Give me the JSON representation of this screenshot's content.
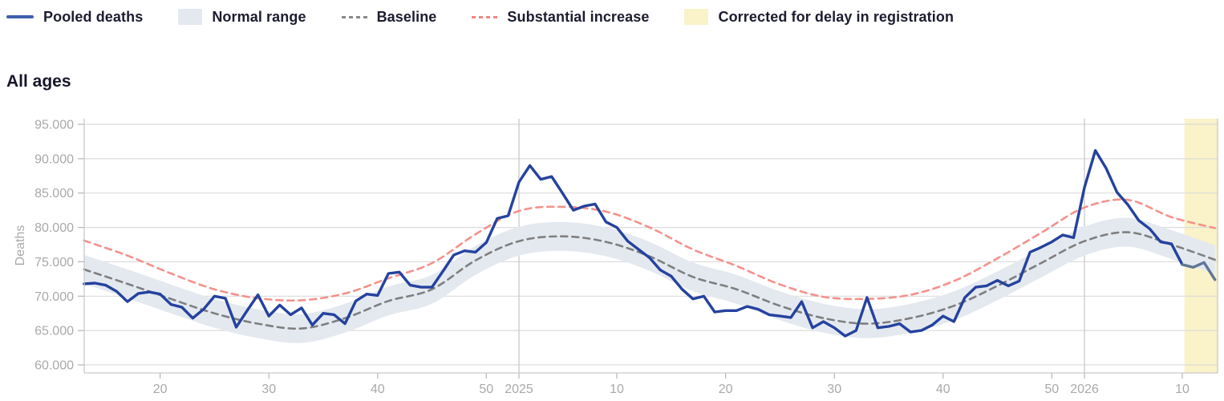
{
  "legend": {
    "items": [
      {
        "label": "Pooled deaths",
        "swatch": "line",
        "color": "#3f5fae"
      },
      {
        "label": "Normal range",
        "swatch": "box",
        "color": "#e4e9f0"
      },
      {
        "label": "Baseline",
        "swatch": "dashes",
        "color": "#8a8a8a"
      },
      {
        "label": "Substantial increase",
        "swatch": "dashes",
        "color": "#f4867f"
      },
      {
        "label": "Corrected for delay in registration",
        "swatch": "box",
        "color": "#faf2c8"
      }
    ]
  },
  "section_title": "All ages",
  "chart_data": {
    "type": "line",
    "title": "All ages",
    "xlabel": "",
    "ylabel": "Deaths",
    "ylim": [
      60000,
      95000
    ],
    "grid": true,
    "y_ticks": [
      {
        "value": 95000,
        "label": "95.000"
      },
      {
        "value": 90000,
        "label": "90.000"
      },
      {
        "value": 85000,
        "label": "85.000"
      },
      {
        "value": 80000,
        "label": "80.000"
      },
      {
        "value": 75000,
        "label": "75.000"
      },
      {
        "value": 70000,
        "label": "70.000"
      },
      {
        "value": 65000,
        "label": "65.000"
      },
      {
        "value": 60000,
        "label": "60.000"
      }
    ],
    "x_axis": {
      "unit": "ISO week",
      "start_week": "2024-W13",
      "end_week": "2026-W13",
      "ticks": [
        {
          "label": "20",
          "t": 7,
          "year_line": false
        },
        {
          "label": "30",
          "t": 17,
          "year_line": false
        },
        {
          "label": "40",
          "t": 27,
          "year_line": false
        },
        {
          "label": "50",
          "t": 37,
          "year_line": false
        },
        {
          "label": "2025",
          "t": 40,
          "year_line": true
        },
        {
          "label": "10",
          "t": 49,
          "year_line": false
        },
        {
          "label": "20",
          "t": 59,
          "year_line": false
        },
        {
          "label": "30",
          "t": 69,
          "year_line": false
        },
        {
          "label": "40",
          "t": 79,
          "year_line": false
        },
        {
          "label": "50",
          "t": 89,
          "year_line": false
        },
        {
          "label": "2026",
          "t": 92,
          "year_line": true
        },
        {
          "label": "10",
          "t": 101,
          "year_line": false
        }
      ]
    },
    "series": [
      {
        "name": "Pooled deaths",
        "kind": "line",
        "color": "#24429e",
        "corrected_color": "#5f7796",
        "corrected_from_t": 101,
        "values": [
          71800,
          71900,
          71600,
          70700,
          69200,
          70400,
          70600,
          70300,
          68800,
          68400,
          66800,
          68100,
          70000,
          69700,
          65500,
          67900,
          70200,
          67100,
          68700,
          67300,
          68300,
          65800,
          67500,
          67300,
          66000,
          69300,
          70300,
          70100,
          73300,
          73500,
          71600,
          71300,
          71300,
          73600,
          76000,
          76600,
          76400,
          77800,
          81300,
          81700,
          86600,
          89000,
          87000,
          87400,
          85000,
          82500,
          83100,
          83400,
          80800,
          80000,
          78000,
          76800,
          75600,
          73800,
          72900,
          71000,
          69600,
          70000,
          67700,
          67900,
          67900,
          68500,
          68100,
          67300,
          67100,
          66900,
          69200,
          65400,
          66300,
          65400,
          64200,
          65000,
          69800,
          65400,
          65600,
          66000,
          64800,
          65000,
          65800,
          67100,
          66300,
          69800,
          71300,
          71500,
          72300,
          71500,
          72200,
          76400,
          77100,
          77900,
          78900,
          78500,
          85800,
          91200,
          88600,
          85100,
          83300,
          81000,
          79800,
          77900,
          77600,
          74600,
          74200,
          74900,
          72400
        ]
      },
      {
        "name": "Baseline",
        "kind": "dashed",
        "color": "#7f7f7f",
        "anchor_step": 4,
        "values": [
          73900,
          71800,
          69600,
          67500,
          66000,
          65300,
          66800,
          69300,
          71000,
          75200,
          78000,
          78700,
          77900,
          75800,
          72800,
          71000,
          68600,
          66800,
          66000,
          66800,
          68600,
          71500,
          74800,
          78000,
          79300,
          77500,
          75300
        ]
      },
      {
        "name": "Substantial increase",
        "kind": "dashed",
        "color": "#f5918b",
        "anchor_step": 4,
        "values": [
          78100,
          75900,
          73300,
          71000,
          69700,
          69400,
          70400,
          72600,
          74800,
          79000,
          82400,
          83000,
          82300,
          80000,
          76800,
          74400,
          71700,
          69900,
          69600,
          70200,
          72200,
          75500,
          79200,
          82900,
          84000,
          81500,
          79900
        ]
      },
      {
        "name": "Normal range",
        "kind": "band",
        "color": "#e4e9f0",
        "around": "Baseline",
        "half_width": 2100
      },
      {
        "name": "Corrected for delay in registration",
        "kind": "vband",
        "color": "#faf2c8",
        "from_t": 101.2,
        "to_end": true
      }
    ]
  }
}
